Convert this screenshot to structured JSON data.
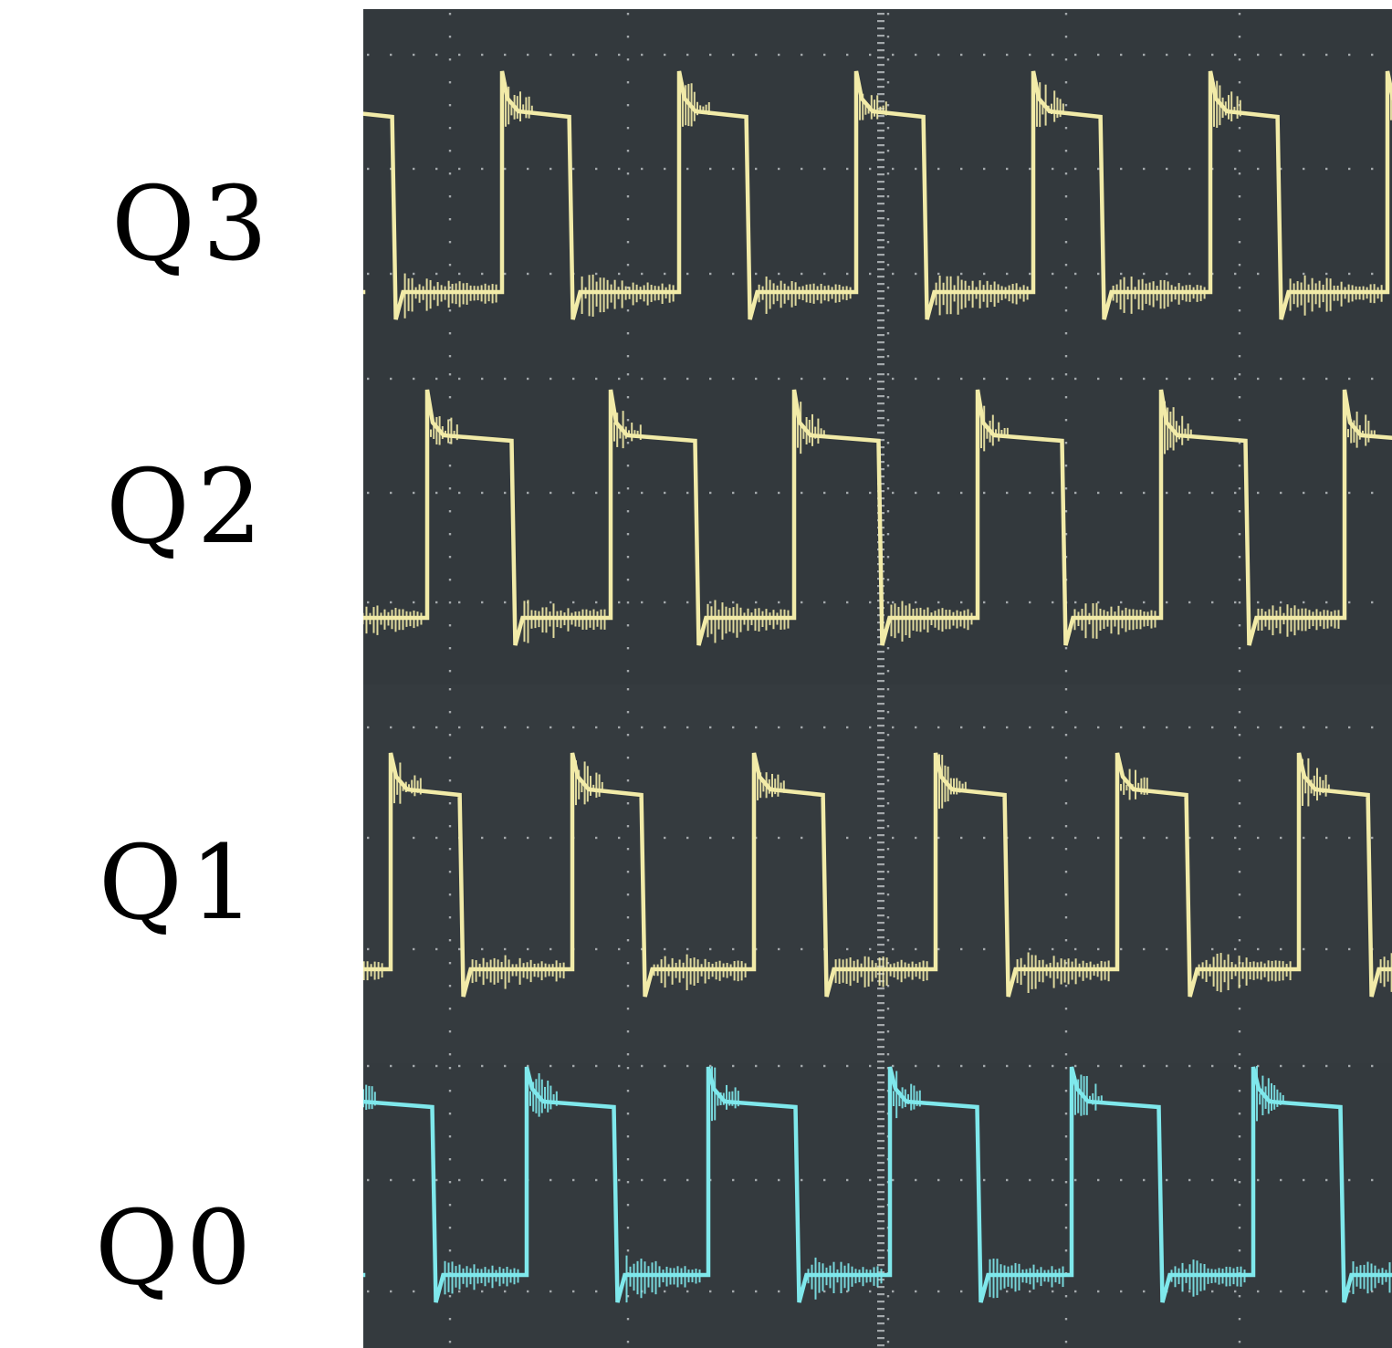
{
  "channels": [
    {
      "label": "Q3",
      "trace_color": "#f2eba8",
      "screen_color": "#33393d"
    },
    {
      "label": "Q2",
      "trace_color": "#f2eba8",
      "screen_color": "#33393d"
    },
    {
      "label": "Q1",
      "trace_color": "#f2eba8",
      "screen_color": "#353b3f"
    },
    {
      "label": "Q0",
      "trace_color": "#7fe8ec",
      "screen_color": "#343a3e"
    }
  ],
  "colors": {
    "background": "#ffffff",
    "grid_dot": "#c9cdd0",
    "label_text": "#000000"
  }
}
